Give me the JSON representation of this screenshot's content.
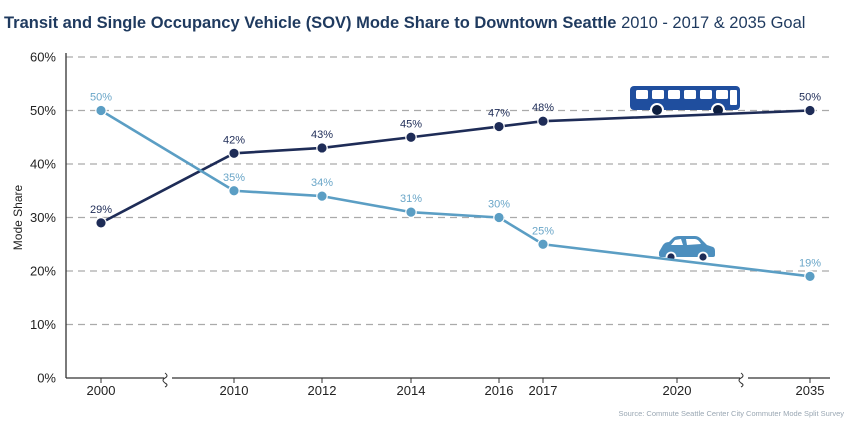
{
  "title": {
    "bold": "Transit and Single Occupancy Vehicle (SOV) Mode Share to Downtown Seattle",
    "normal": "2010 - 2017 & 2035 Goal"
  },
  "source": "Source: Commute Seattle Center City Commuter Mode Split Survey",
  "colors": {
    "transit": "#1e2c57",
    "sov": "#5b9ec4",
    "sov_label": "#6aa6c8",
    "grid": "#aaaaaa",
    "bus_fill": "#1f4e9e",
    "car_fill": "#4d8fbe"
  },
  "icons": {
    "transit": "bus-icon",
    "sov": "car-icon"
  },
  "chart_data": {
    "type": "line",
    "title": "Transit and Single Occupancy Vehicle (SOV) Mode Share to Downtown Seattle 2010 - 2017 & 2035 Goal",
    "ylabel": "Mode Share",
    "xlabel": "",
    "ylim": [
      0,
      60
    ],
    "yticks": [
      0,
      10,
      20,
      30,
      40,
      50,
      60
    ],
    "ytick_labels": [
      "0%",
      "10%",
      "20%",
      "30%",
      "40%",
      "50%",
      "60%"
    ],
    "x": [
      "2000",
      "2010",
      "2012",
      "2014",
      "2016",
      "2017",
      "2020",
      "2035"
    ],
    "x_axis_breaks": [
      "2000-2010",
      "2020-2035"
    ],
    "grid": "horizontal dashed",
    "series": [
      {
        "key": "transit",
        "x": [
          "2000",
          "2010",
          "2012",
          "2014",
          "2016",
          "2017",
          "2035"
        ],
        "values": [
          29,
          42,
          43,
          45,
          47,
          48,
          50
        ],
        "labels": [
          "29%",
          "42%",
          "43%",
          "45%",
          "47%",
          "48%",
          "50%"
        ]
      },
      {
        "key": "sov",
        "x": [
          "2000",
          "2010",
          "2012",
          "2014",
          "2016",
          "2017",
          "2035"
        ],
        "values": [
          50,
          35,
          34,
          31,
          30,
          25,
          19
        ],
        "labels": [
          "50%",
          "35%",
          "34%",
          "31%",
          "30%",
          "25%",
          "19%"
        ]
      }
    ]
  }
}
